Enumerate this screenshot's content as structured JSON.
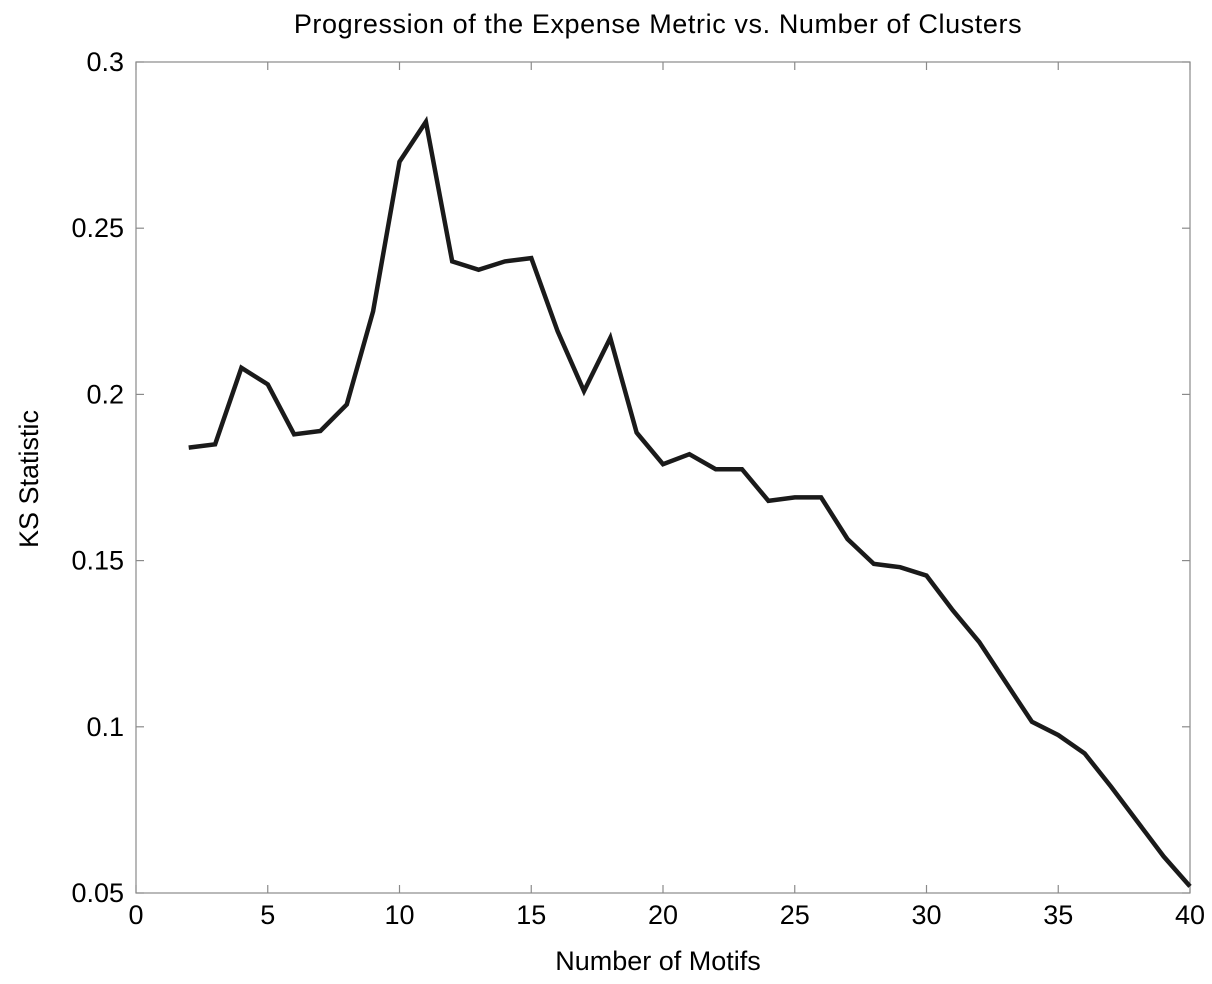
{
  "chart_data": {
    "type": "line",
    "title": "Progression of the Expense Metric vs. Number of Clusters",
    "xlabel": "Number of Motifs",
    "ylabel": "KS Statistic",
    "xlim": [
      0,
      40
    ],
    "ylim": [
      0.05,
      0.3
    ],
    "xticks": [
      0,
      5,
      10,
      15,
      20,
      25,
      30,
      35,
      40
    ],
    "xtick_labels": [
      "0",
      "5",
      "10",
      "15",
      "20",
      "25",
      "30",
      "35",
      "40"
    ],
    "yticks": [
      0.05,
      0.1,
      0.15,
      0.2,
      0.25,
      0.3
    ],
    "ytick_labels": [
      "0.05",
      "0.1",
      "0.15",
      "0.2",
      "0.25",
      "0.3"
    ],
    "grid": false,
    "line_color": "#1a1a1a",
    "series": [
      {
        "x": [
          2,
          3,
          4,
          5,
          6,
          7,
          8,
          9,
          10,
          11,
          12,
          13,
          14,
          15,
          16,
          17,
          18,
          19,
          20,
          21,
          22,
          23,
          24,
          25,
          26,
          27,
          28,
          29,
          30,
          31,
          32,
          33,
          34,
          35,
          36,
          37,
          38,
          39,
          40
        ],
        "y": [
          0.184,
          0.185,
          0.208,
          0.203,
          0.188,
          0.189,
          0.197,
          0.225,
          0.27,
          0.282,
          0.24,
          0.2375,
          0.24,
          0.241,
          0.219,
          0.201,
          0.217,
          0.1885,
          0.179,
          0.182,
          0.1775,
          0.1775,
          0.168,
          0.169,
          0.169,
          0.1565,
          0.149,
          0.148,
          0.1455,
          0.135,
          0.1255,
          0.1135,
          0.1015,
          0.0975,
          0.092,
          0.082,
          0.0715,
          0.061,
          0.052
        ]
      }
    ]
  }
}
